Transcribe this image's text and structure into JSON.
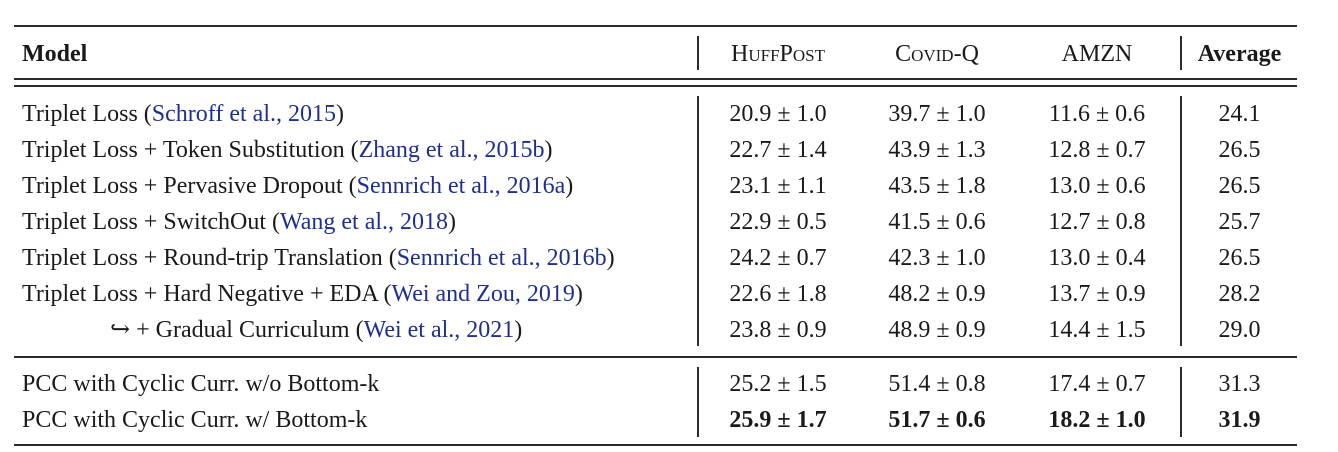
{
  "header": {
    "model": "Model",
    "columns": [
      "HuffPost",
      "Covid-Q",
      "AMZN"
    ],
    "average": "Average"
  },
  "rows": [
    {
      "method": "Triplet Loss (",
      "cite": "Schroff et al., 2015",
      "close": ")",
      "huffpost": "20.9 ± 1.0",
      "covidq": "39.7 ± 1.0",
      "amzn": "11.6 ± 0.6",
      "avg": "24.1"
    },
    {
      "method": "Triplet Loss + Token Substitution (",
      "cite": "Zhang et al., 2015b",
      "close": ")",
      "huffpost": "22.7 ± 1.4",
      "covidq": "43.9 ± 1.3",
      "amzn": "12.8 ± 0.7",
      "avg": "26.5"
    },
    {
      "method": "Triplet Loss + Pervasive Dropout (",
      "cite": "Sennrich et al., 2016a",
      "close": ")",
      "huffpost": "23.1 ± 1.1",
      "covidq": "43.5 ± 1.8",
      "amzn": "13.0 ± 0.6",
      "avg": "26.5"
    },
    {
      "method": "Triplet Loss + SwitchOut (",
      "cite": "Wang et al., 2018",
      "close": ")",
      "huffpost": "22.9 ± 0.5",
      "covidq": "41.5 ± 0.6",
      "amzn": "12.7 ± 0.8",
      "avg": "25.7"
    },
    {
      "method": "Triplet Loss + Round-trip Translation (",
      "cite": "Sennrich et al., 2016b",
      "close": ")",
      "huffpost": "24.2 ± 0.7",
      "covidq": "42.3 ± 1.0",
      "amzn": "13.0 ± 0.4",
      "avg": "26.5"
    },
    {
      "method": "Triplet Loss + Hard Negative + EDA (",
      "cite": "Wei and Zou, 2019",
      "close": ")",
      "huffpost": "22.6 ± 1.8",
      "covidq": "48.2 ± 0.9",
      "amzn": "13.7 ± 0.9",
      "avg": "28.2"
    },
    {
      "method": "↪ + Gradual Curriculum (",
      "cite": "Wei et al., 2021",
      "close": ")",
      "huffpost": "23.8 ± 0.9",
      "covidq": "48.9 ± 0.9",
      "amzn": "14.4 ± 1.5",
      "avg": "29.0"
    }
  ],
  "pcc_rows": [
    {
      "method": "PCC with Cyclic Curr. w/o Bottom-k",
      "huffpost": "25.2 ± 1.5",
      "covidq": "51.4 ± 0.8",
      "amzn": "17.4 ± 0.7",
      "avg": "31.3"
    },
    {
      "method": "PCC with Cyclic Curr. w/ Bottom-k",
      "huffpost": "25.9 ± 1.7",
      "covidq": "51.7 ± 0.6",
      "amzn": "18.2 ± 1.0",
      "avg": "31.9"
    }
  ]
}
